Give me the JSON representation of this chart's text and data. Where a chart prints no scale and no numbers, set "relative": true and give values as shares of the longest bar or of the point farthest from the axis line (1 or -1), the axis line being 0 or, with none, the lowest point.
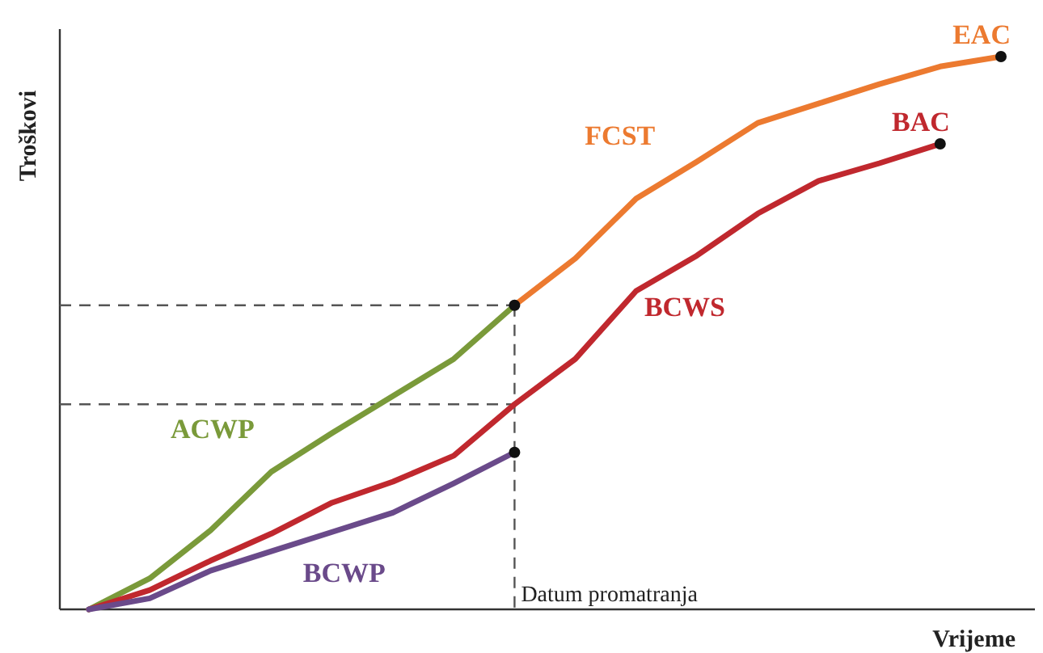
{
  "chart_data": {
    "type": "line",
    "relative": true,
    "xlabel": "Vrijeme",
    "ylabel": "Troškovi",
    "categories": [
      null,
      null,
      null,
      null,
      null,
      null,
      null,
      null,
      null,
      null,
      null,
      null,
      null,
      null,
      null,
      null
    ],
    "series": [
      {
        "name": "ACWP",
        "color": "#7a9a3a",
        "values": [
          0,
          0.056,
          0.143,
          0.249,
          0.319,
          0.386,
          0.453,
          0.55,
          null,
          null,
          null,
          null,
          null,
          null,
          null,
          null
        ]
      },
      {
        "name": "FCST",
        "color": "#ec7a30",
        "values": [
          null,
          null,
          null,
          null,
          null,
          null,
          null,
          0.55,
          0.635,
          0.743,
          0.81,
          0.88,
          0.915,
          0.95,
          0.982,
          1
        ]
      },
      {
        "name": "BCWS",
        "color": "#c0282e",
        "values": [
          0,
          0.035,
          0.088,
          0.137,
          0.193,
          0.231,
          0.278,
          0.371,
          0.453,
          0.576,
          0.64,
          0.716,
          0.775,
          0.807,
          0.842,
          null
        ]
      },
      {
        "name": "BCWP",
        "color": "#6a4a8a",
        "values": [
          0,
          0.02,
          0.07,
          0.105,
          0.14,
          0.175,
          0.228,
          0.284,
          null,
          null,
          null,
          null,
          null,
          null,
          null,
          null
        ]
      }
    ],
    "ref_lines": [
      {
        "axis": "y",
        "value": 0.55,
        "label": null,
        "line_style": "dashed",
        "color": "#555555"
      },
      {
        "axis": "y",
        "value": 0.371,
        "label": null,
        "line_style": "dashed",
        "color": "#555555"
      }
    ],
    "annotations": [
      "EAC",
      "BAC",
      "Datum promatranja"
    ],
    "marker": "none",
    "line_style": "solid"
  }
}
